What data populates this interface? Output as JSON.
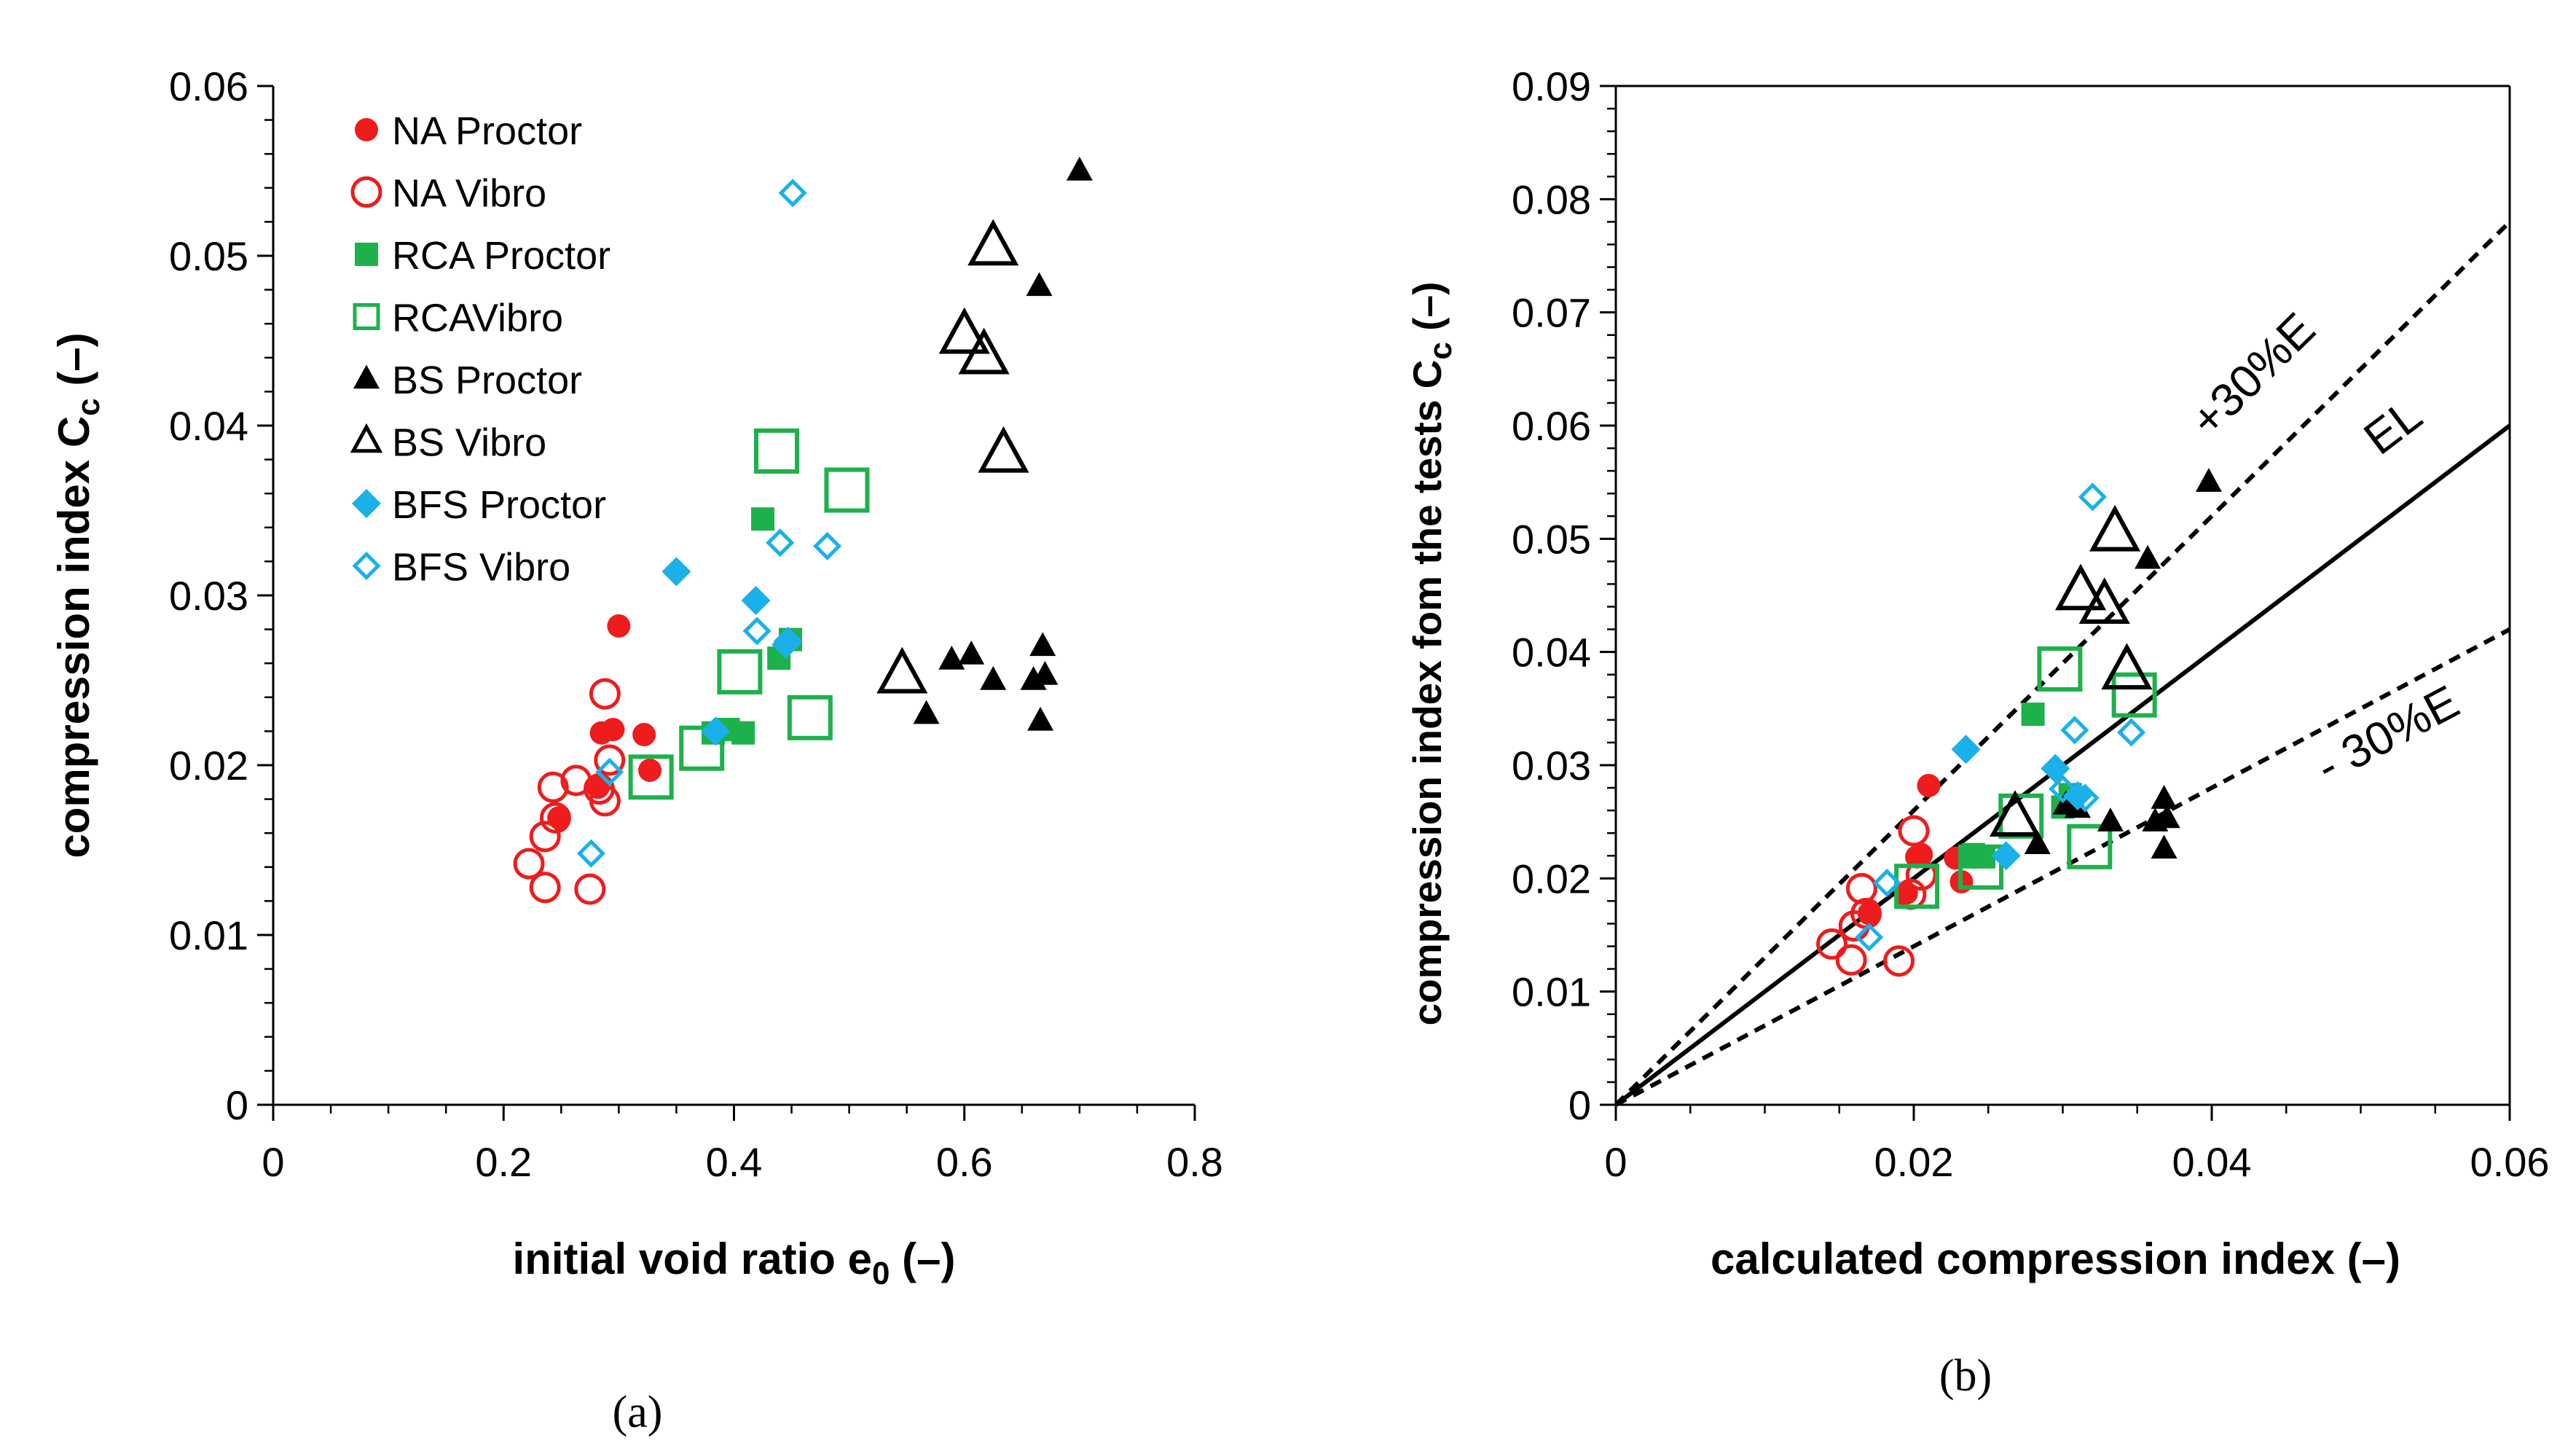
{
  "colors": {
    "na": "#ee1c1c",
    "rca": "#1db14b",
    "bs": "#000000",
    "bfs": "#1ab0ea"
  },
  "chart_data": [
    {
      "id": "a",
      "type": "scatter",
      "caption": "(a)",
      "title": "",
      "xlabel": "initial void ratio e",
      "xlabel_sub": "0",
      "xlabel_suffix": " (–)",
      "ylabel": "compression index C",
      "ylabel_sub": "c",
      "ylabel_suffix": "  (–)",
      "xlim": [
        0,
        0.8
      ],
      "ylim": [
        0,
        0.06
      ],
      "xticks": [
        0,
        0.2,
        0.4,
        0.6,
        0.8
      ],
      "xtick_labels": [
        "0",
        "0.2",
        "0.4",
        "0.6",
        "0.8"
      ],
      "yticks": [
        0,
        0.01,
        0.02,
        0.03,
        0.04,
        0.05,
        0.06
      ],
      "ytick_labels": [
        "0",
        "0.01",
        "0.02",
        "0.03",
        "0.04",
        "0.05",
        "0.06"
      ],
      "legend_position": "top-left",
      "series": [
        {
          "name": "NA Proctor",
          "marker": "circle",
          "filled": true,
          "color": "#ee1c1c",
          "size": "small",
          "points": [
            [
              0.3,
              0.0282
            ],
            [
              0.285,
              0.0219
            ],
            [
              0.295,
              0.0221
            ],
            [
              0.322,
              0.0218
            ],
            [
              0.327,
              0.0197
            ],
            [
              0.282,
              0.0187
            ],
            [
              0.248,
              0.0169
            ]
          ]
        },
        {
          "name": "NA Vibro",
          "marker": "circle",
          "filled": false,
          "color": "#ee1c1c",
          "size": "small",
          "points": [
            [
              0.288,
              0.0242
            ],
            [
              0.292,
              0.0203
            ],
            [
              0.283,
              0.0186
            ],
            [
              0.263,
              0.0191
            ],
            [
              0.243,
              0.0187
            ],
            [
              0.288,
              0.0179
            ],
            [
              0.245,
              0.0169
            ],
            [
              0.236,
              0.0158
            ],
            [
              0.222,
              0.0142
            ],
            [
              0.236,
              0.0128
            ],
            [
              0.275,
              0.0127
            ]
          ]
        },
        {
          "name": "RCA Proctor",
          "marker": "square",
          "filled": true,
          "color": "#1db14b",
          "size": "small",
          "points": [
            [
              0.425,
              0.0345
            ],
            [
              0.449,
              0.0274
            ],
            [
              0.439,
              0.0263
            ],
            [
              0.395,
              0.0221
            ],
            [
              0.382,
              0.0219
            ],
            [
              0.408,
              0.0219
            ]
          ]
        },
        {
          "name": "RCAVibro",
          "marker": "square",
          "filled": false,
          "color": "#1db14b",
          "size": "large",
          "points": [
            [
              0.437,
              0.0385
            ],
            [
              0.498,
              0.0362
            ],
            [
              0.405,
              0.0255
            ],
            [
              0.466,
              0.0228
            ],
            [
              0.328,
              0.0193
            ],
            [
              0.372,
              0.021
            ]
          ]
        },
        {
          "name": "BS Proctor",
          "marker": "triangle",
          "filled": true,
          "color": "#000000",
          "size": "small",
          "points": [
            [
              0.7,
              0.055
            ],
            [
              0.665,
              0.0482
            ],
            [
              0.668,
              0.027
            ],
            [
              0.606,
              0.0265
            ],
            [
              0.67,
              0.0253
            ],
            [
              0.589,
              0.0262
            ],
            [
              0.625,
              0.025
            ],
            [
              0.66,
              0.025
            ],
            [
              0.567,
              0.023
            ],
            [
              0.666,
              0.0226
            ]
          ]
        },
        {
          "name": "BS Vibro",
          "marker": "triangle",
          "filled": false,
          "color": "#000000",
          "size": "large",
          "points": [
            [
              0.625,
              0.0505
            ],
            [
              0.6,
              0.0453
            ],
            [
              0.617,
              0.0441
            ],
            [
              0.634,
              0.0383
            ],
            [
              0.546,
              0.0253
            ]
          ]
        },
        {
          "name": "BFS Proctor",
          "marker": "diamond",
          "filled": true,
          "color": "#1ab0ea",
          "size": "small",
          "points": [
            [
              0.35,
              0.0314
            ],
            [
              0.419,
              0.0297
            ],
            [
              0.447,
              0.0273
            ],
            [
              0.384,
              0.022
            ]
          ]
        },
        {
          "name": "BFS Vibro",
          "marker": "diamond",
          "filled": false,
          "color": "#1ab0ea",
          "size": "small",
          "points": [
            [
              0.451,
              0.0537
            ],
            [
              0.44,
              0.0331
            ],
            [
              0.481,
              0.0329
            ],
            [
              0.42,
              0.0279
            ],
            [
              0.445,
              0.0271
            ],
            [
              0.292,
              0.0196
            ],
            [
              0.276,
              0.0148
            ]
          ]
        }
      ]
    },
    {
      "id": "b",
      "type": "scatter",
      "caption": "(b)",
      "title": "",
      "xlabel": "calculated compression index (–)",
      "ylabel": "compression index fom the tests C",
      "ylabel_sub": "c",
      "ylabel_suffix": "  (–)",
      "xlim": [
        0,
        0.06
      ],
      "ylim": [
        0,
        0.09
      ],
      "xticks": [
        0,
        0.02,
        0.04,
        0.06
      ],
      "xtick_labels": [
        "0",
        "0.02",
        "0.04",
        "0.06"
      ],
      "yticks": [
        0,
        0.01,
        0.02,
        0.03,
        0.04,
        0.05,
        0.06,
        0.07,
        0.08,
        0.09
      ],
      "ytick_labels": [
        "0",
        "0.01",
        "0.02",
        "0.03",
        "0.04",
        "0.05",
        "0.06",
        "0.07",
        "0.08",
        "0.09"
      ],
      "lines": [
        {
          "label": "+30%E",
          "slope": 1.3,
          "style": "dashed"
        },
        {
          "label": "EL",
          "slope": 1.0,
          "style": "solid"
        },
        {
          "label": "- 30%E",
          "slope": 0.7,
          "style": "dashed"
        }
      ],
      "series": [
        {
          "name": "NA Proctor",
          "marker": "circle",
          "filled": true,
          "color": "#ee1c1c",
          "size": "small",
          "points": [
            [
              0.021,
              0.0282
            ],
            [
              0.0202,
              0.0219
            ],
            [
              0.0205,
              0.0221
            ],
            [
              0.0228,
              0.0218
            ],
            [
              0.0232,
              0.0197
            ],
            [
              0.0195,
              0.0187
            ],
            [
              0.017,
              0.0169
            ]
          ]
        },
        {
          "name": "NA Vibro",
          "marker": "circle",
          "filled": false,
          "color": "#ee1c1c",
          "size": "small",
          "points": [
            [
              0.02,
              0.0242
            ],
            [
              0.0205,
              0.0203
            ],
            [
              0.0198,
              0.0186
            ],
            [
              0.0165,
              0.0191
            ],
            [
              0.0168,
              0.0169
            ],
            [
              0.016,
              0.0158
            ],
            [
              0.0145,
              0.0142
            ],
            [
              0.0158,
              0.0128
            ],
            [
              0.019,
              0.0127
            ]
          ]
        },
        {
          "name": "RCA Proctor",
          "marker": "square",
          "filled": true,
          "color": "#1db14b",
          "size": "small",
          "points": [
            [
              0.028,
              0.0345
            ],
            [
              0.0305,
              0.0274
            ],
            [
              0.03,
              0.0263
            ],
            [
              0.024,
              0.0221
            ],
            [
              0.0238,
              0.0219
            ],
            [
              0.0247,
              0.0219
            ]
          ]
        },
        {
          "name": "RCAVibro",
          "marker": "square",
          "filled": false,
          "color": "#1db14b",
          "size": "large",
          "points": [
            [
              0.0298,
              0.0385
            ],
            [
              0.0348,
              0.0362
            ],
            [
              0.0272,
              0.0255
            ],
            [
              0.0318,
              0.0228
            ],
            [
              0.0202,
              0.0193
            ],
            [
              0.0245,
              0.021
            ]
          ]
        },
        {
          "name": "BS Proctor",
          "marker": "triangle",
          "filled": true,
          "color": "#000000",
          "size": "small",
          "points": [
            [
              0.0398,
              0.055
            ],
            [
              0.0357,
              0.0482
            ],
            [
              0.0368,
              0.027
            ],
            [
              0.0302,
              0.0265
            ],
            [
              0.037,
              0.0253
            ],
            [
              0.031,
              0.0262
            ],
            [
              0.0332,
              0.025
            ],
            [
              0.0362,
              0.025
            ],
            [
              0.0283,
              0.023
            ],
            [
              0.0368,
              0.0226
            ]
          ]
        },
        {
          "name": "BS Vibro",
          "marker": "triangle",
          "filled": false,
          "color": "#000000",
          "size": "large",
          "points": [
            [
              0.0335,
              0.0505
            ],
            [
              0.0312,
              0.0453
            ],
            [
              0.0328,
              0.0441
            ],
            [
              0.0343,
              0.0383
            ],
            [
              0.0268,
              0.0253
            ]
          ]
        },
        {
          "name": "BFS Proctor",
          "marker": "diamond",
          "filled": true,
          "color": "#1ab0ea",
          "size": "small",
          "points": [
            [
              0.0235,
              0.0314
            ],
            [
              0.0295,
              0.0297
            ],
            [
              0.031,
              0.0273
            ],
            [
              0.0262,
              0.022
            ]
          ]
        },
        {
          "name": "BFS Vibro",
          "marker": "diamond",
          "filled": false,
          "color": "#1ab0ea",
          "size": "small",
          "points": [
            [
              0.032,
              0.0537
            ],
            [
              0.0308,
              0.0331
            ],
            [
              0.0346,
              0.0329
            ],
            [
              0.03,
              0.0279
            ],
            [
              0.0315,
              0.0271
            ],
            [
              0.0182,
              0.0196
            ],
            [
              0.017,
              0.0148
            ]
          ]
        }
      ]
    }
  ]
}
